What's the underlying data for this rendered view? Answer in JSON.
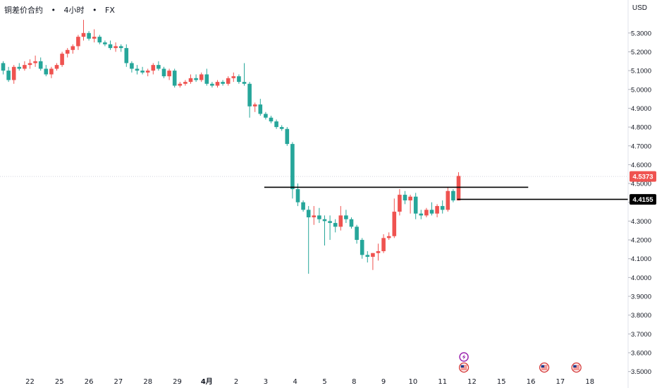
{
  "header": {
    "symbol": "铜差价合约",
    "interval": "4小时",
    "source": "FX",
    "separator": "•",
    "currency": "USD"
  },
  "chart_data": {
    "type": "candlestick",
    "title": "",
    "xlabel": "",
    "ylabel": "",
    "ylim": [
      3.48,
      5.38
    ],
    "y_ticks": [
      "5.3000",
      "5.2000",
      "5.1000",
      "5.0000",
      "4.9000",
      "4.8000",
      "4.7000",
      "4.6000",
      "4.5000",
      "4.4000",
      "4.3000",
      "4.2000",
      "4.1000",
      "4.0000",
      "3.9000",
      "3.8000",
      "3.7000",
      "3.6000",
      "3.5000"
    ],
    "x_ticks": [
      {
        "label": "22",
        "bar": 5
      },
      {
        "label": "25",
        "bar": 10.5
      },
      {
        "label": "26",
        "bar": 16
      },
      {
        "label": "27",
        "bar": 21.5
      },
      {
        "label": "28",
        "bar": 27
      },
      {
        "label": "29",
        "bar": 32.5
      },
      {
        "label": "4月",
        "bar": 38,
        "bold": true
      },
      {
        "label": "2",
        "bar": 43.5
      },
      {
        "label": "3",
        "bar": 49
      },
      {
        "label": "4",
        "bar": 54.5
      },
      {
        "label": "5",
        "bar": 60
      },
      {
        "label": "8",
        "bar": 65.5
      },
      {
        "label": "9",
        "bar": 71
      },
      {
        "label": "10",
        "bar": 76.5
      },
      {
        "label": "11",
        "bar": 82
      },
      {
        "label": "12",
        "bar": 87.5
      },
      {
        "label": "15",
        "bar": 93
      },
      {
        "label": "16",
        "bar": 98.5
      },
      {
        "label": "17",
        "bar": 104
      },
      {
        "label": "18",
        "bar": 109.5
      }
    ],
    "up_color": "#ef5350",
    "down_color": "#26a69a",
    "candles": [
      [
        5.14,
        5.15,
        5.08,
        5.1
      ],
      [
        5.1,
        5.12,
        5.04,
        5.05
      ],
      [
        5.05,
        5.13,
        5.03,
        5.12
      ],
      [
        5.12,
        5.14,
        5.1,
        5.11
      ],
      [
        5.11,
        5.15,
        5.1,
        5.13
      ],
      [
        5.13,
        5.16,
        5.11,
        5.14
      ],
      [
        5.14,
        5.18,
        5.12,
        5.15
      ],
      [
        5.15,
        5.17,
        5.1,
        5.11
      ],
      [
        5.11,
        5.13,
        5.07,
        5.08
      ],
      [
        5.08,
        5.12,
        5.06,
        5.11
      ],
      [
        5.11,
        5.14,
        5.1,
        5.13
      ],
      [
        5.13,
        5.2,
        5.12,
        5.19
      ],
      [
        5.19,
        5.22,
        5.17,
        5.21
      ],
      [
        5.21,
        5.24,
        5.19,
        5.23
      ],
      [
        5.23,
        5.29,
        5.21,
        5.28
      ],
      [
        5.28,
        5.37,
        5.26,
        5.3
      ],
      [
        5.3,
        5.31,
        5.26,
        5.27
      ],
      [
        5.27,
        5.32,
        5.25,
        5.28
      ],
      [
        5.28,
        5.29,
        5.24,
        5.25
      ],
      [
        5.25,
        5.26,
        5.23,
        5.24
      ],
      [
        5.24,
        5.26,
        5.21,
        5.22
      ],
      [
        5.22,
        5.25,
        5.2,
        5.23
      ],
      [
        5.23,
        5.24,
        5.2,
        5.22
      ],
      [
        5.22,
        5.24,
        5.12,
        5.14
      ],
      [
        5.14,
        5.15,
        5.09,
        5.11
      ],
      [
        5.11,
        5.13,
        5.08,
        5.1
      ],
      [
        5.1,
        5.12,
        5.08,
        5.09
      ],
      [
        5.09,
        5.11,
        5.07,
        5.1
      ],
      [
        5.1,
        5.14,
        5.08,
        5.13
      ],
      [
        5.13,
        5.15,
        5.1,
        5.11
      ],
      [
        5.11,
        5.12,
        5.06,
        5.07
      ],
      [
        5.07,
        5.11,
        5.05,
        5.1
      ],
      [
        5.1,
        5.11,
        5.01,
        5.02
      ],
      [
        5.02,
        5.04,
        5.01,
        5.03
      ],
      [
        5.03,
        5.05,
        5.02,
        5.04
      ],
      [
        5.04,
        5.08,
        5.03,
        5.06
      ],
      [
        5.06,
        5.08,
        5.04,
        5.05
      ],
      [
        5.05,
        5.09,
        5.04,
        5.08
      ],
      [
        5.08,
        5.11,
        5.02,
        5.03
      ],
      [
        5.03,
        5.04,
        5.01,
        5.02
      ],
      [
        5.02,
        5.05,
        5.01,
        5.04
      ],
      [
        5.04,
        5.05,
        5.02,
        5.03
      ],
      [
        5.03,
        5.07,
        5.02,
        5.06
      ],
      [
        5.06,
        5.09,
        5.04,
        5.07
      ],
      [
        5.07,
        5.08,
        5.03,
        5.04
      ],
      [
        5.04,
        5.14,
        5.02,
        5.03
      ],
      [
        5.03,
        5.04,
        4.85,
        4.91
      ],
      [
        4.91,
        4.93,
        4.88,
        4.92
      ],
      [
        4.92,
        4.95,
        4.86,
        4.87
      ],
      [
        4.87,
        4.88,
        4.84,
        4.85
      ],
      [
        4.85,
        4.86,
        4.82,
        4.83
      ],
      [
        4.83,
        4.84,
        4.79,
        4.8
      ],
      [
        4.8,
        4.81,
        4.78,
        4.79
      ],
      [
        4.79,
        4.8,
        4.7,
        4.71
      ],
      [
        4.71,
        4.72,
        4.42,
        4.47
      ],
      [
        4.47,
        4.5,
        4.38,
        4.4
      ],
      [
        4.4,
        4.41,
        4.35,
        4.36
      ],
      [
        4.36,
        4.38,
        4.02,
        4.32
      ],
      [
        4.32,
        4.38,
        4.28,
        4.33
      ],
      [
        4.33,
        4.37,
        4.29,
        4.31
      ],
      [
        4.31,
        4.33,
        4.17,
        4.3
      ],
      [
        4.3,
        4.33,
        4.2,
        4.29
      ],
      [
        4.29,
        4.31,
        4.24,
        4.27
      ],
      [
        4.27,
        4.38,
        4.25,
        4.33
      ],
      [
        4.33,
        4.36,
        4.29,
        4.31
      ],
      [
        4.31,
        4.32,
        4.26,
        4.27
      ],
      [
        4.27,
        4.28,
        4.18,
        4.2
      ],
      [
        4.2,
        4.21,
        4.1,
        4.12
      ],
      [
        4.12,
        4.14,
        4.08,
        4.11
      ],
      [
        4.11,
        4.13,
        4.04,
        4.13
      ],
      [
        4.13,
        4.18,
        4.09,
        4.14
      ],
      [
        4.14,
        4.23,
        4.13,
        4.21
      ],
      [
        4.21,
        4.24,
        4.2,
        4.22
      ],
      [
        4.22,
        4.42,
        4.21,
        4.35
      ],
      [
        4.35,
        4.47,
        4.33,
        4.44
      ],
      [
        4.44,
        4.46,
        4.39,
        4.41
      ],
      [
        4.41,
        4.44,
        4.34,
        4.43
      ],
      [
        4.43,
        4.45,
        4.31,
        4.34
      ],
      [
        4.34,
        4.36,
        4.31,
        4.33
      ],
      [
        4.33,
        4.37,
        4.32,
        4.36
      ],
      [
        4.36,
        4.4,
        4.33,
        4.34
      ],
      [
        4.34,
        4.39,
        4.32,
        4.38
      ],
      [
        4.38,
        4.41,
        4.34,
        4.36
      ],
      [
        4.36,
        4.48,
        4.35,
        4.46
      ],
      [
        4.46,
        4.47,
        4.4,
        4.41
      ],
      [
        4.41,
        4.56,
        4.41,
        4.54
      ]
    ],
    "annotations": {
      "resistance_line": {
        "value": 4.48,
        "from_bar": 49,
        "to_bar": 98
      },
      "support_line": {
        "value": 4.4155,
        "from_bar": 85
      },
      "current_price": {
        "value": 4.5373,
        "label": "4.5373",
        "color": "#ef5350"
      },
      "support_price": {
        "value": 4.4155,
        "label": "4.4155",
        "color": "#000000"
      }
    },
    "events": [
      {
        "type": "lightning-icon",
        "bar": 86,
        "row": 0
      },
      {
        "type": "us-flag-icon",
        "bar": 86,
        "row": 1
      },
      {
        "type": "us-flag-icon",
        "bar": 101,
        "row": 1
      },
      {
        "type": "us-flag-icon",
        "bar": 107,
        "row": 1
      }
    ]
  }
}
